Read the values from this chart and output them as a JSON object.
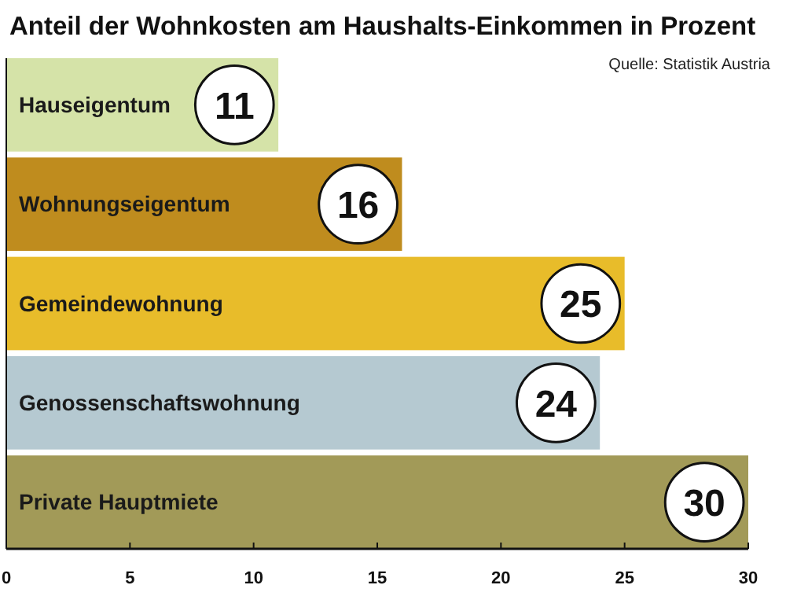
{
  "chart_data": {
    "type": "bar",
    "orientation": "horizontal",
    "title": "Anteil der Wohnkosten am Haushalts-Einkommen in Prozent",
    "annotations": [
      "Quelle: Statistik Austria"
    ],
    "categories": [
      "Hauseigentum",
      "Wohnungseigentum",
      "Gemeindewohnung",
      "Genossenschaftswohnung",
      "Private Hauptmiete"
    ],
    "values": [
      11,
      16,
      25,
      24,
      30
    ],
    "colors": [
      "#d5e3a8",
      "#bf8c1e",
      "#e8bc2a",
      "#b5c9d1",
      "#a29a58"
    ],
    "xlim": [
      0,
      30
    ],
    "xticks": [
      0,
      5,
      10,
      15,
      20,
      25,
      30
    ],
    "data_labels": true
  }
}
